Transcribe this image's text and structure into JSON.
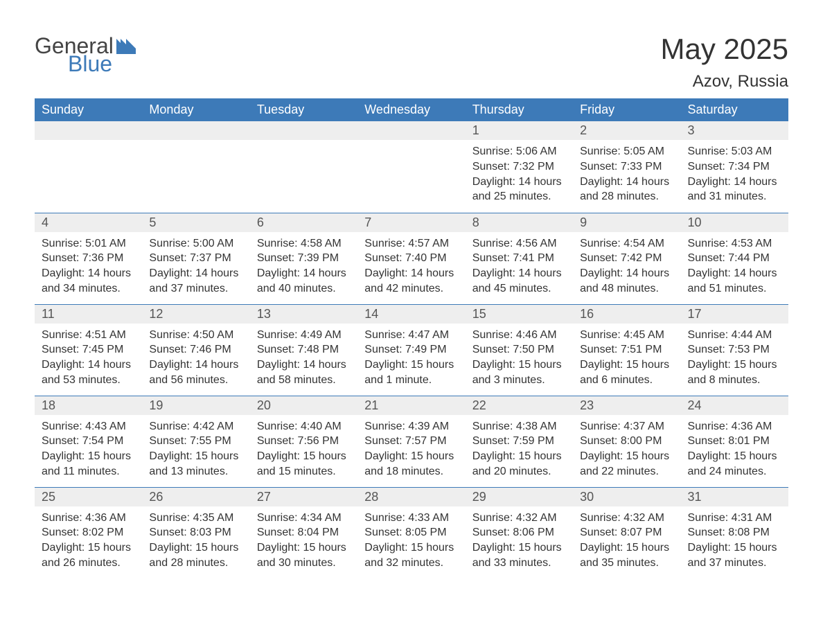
{
  "branding": {
    "word1": "General",
    "word2": "Blue",
    "word1_color": "#444444",
    "word2_color": "#3d7ab8",
    "flag_color": "#3d7ab8"
  },
  "title": {
    "month_year": "May 2025",
    "location": "Azov, Russia",
    "title_fontsize": 42,
    "location_fontsize": 24,
    "text_color": "#333333"
  },
  "calendar": {
    "type": "table",
    "header_bg": "#3d7ab8",
    "header_text_color": "#ffffff",
    "daynum_bg": "#eeeeee",
    "daynum_color": "#555555",
    "body_text_color": "#333333",
    "row_border_color": "#3d7ab8",
    "background_color": "#ffffff",
    "columns": [
      "Sunday",
      "Monday",
      "Tuesday",
      "Wednesday",
      "Thursday",
      "Friday",
      "Saturday"
    ],
    "weeks": [
      [
        {
          "day": null
        },
        {
          "day": null
        },
        {
          "day": null
        },
        {
          "day": null
        },
        {
          "day": "1",
          "sunrise": "Sunrise: 5:06 AM",
          "sunset": "Sunset: 7:32 PM",
          "daylight": "Daylight: 14 hours and 25 minutes."
        },
        {
          "day": "2",
          "sunrise": "Sunrise: 5:05 AM",
          "sunset": "Sunset: 7:33 PM",
          "daylight": "Daylight: 14 hours and 28 minutes."
        },
        {
          "day": "3",
          "sunrise": "Sunrise: 5:03 AM",
          "sunset": "Sunset: 7:34 PM",
          "daylight": "Daylight: 14 hours and 31 minutes."
        }
      ],
      [
        {
          "day": "4",
          "sunrise": "Sunrise: 5:01 AM",
          "sunset": "Sunset: 7:36 PM",
          "daylight": "Daylight: 14 hours and 34 minutes."
        },
        {
          "day": "5",
          "sunrise": "Sunrise: 5:00 AM",
          "sunset": "Sunset: 7:37 PM",
          "daylight": "Daylight: 14 hours and 37 minutes."
        },
        {
          "day": "6",
          "sunrise": "Sunrise: 4:58 AM",
          "sunset": "Sunset: 7:39 PM",
          "daylight": "Daylight: 14 hours and 40 minutes."
        },
        {
          "day": "7",
          "sunrise": "Sunrise: 4:57 AM",
          "sunset": "Sunset: 7:40 PM",
          "daylight": "Daylight: 14 hours and 42 minutes."
        },
        {
          "day": "8",
          "sunrise": "Sunrise: 4:56 AM",
          "sunset": "Sunset: 7:41 PM",
          "daylight": "Daylight: 14 hours and 45 minutes."
        },
        {
          "day": "9",
          "sunrise": "Sunrise: 4:54 AM",
          "sunset": "Sunset: 7:42 PM",
          "daylight": "Daylight: 14 hours and 48 minutes."
        },
        {
          "day": "10",
          "sunrise": "Sunrise: 4:53 AM",
          "sunset": "Sunset: 7:44 PM",
          "daylight": "Daylight: 14 hours and 51 minutes."
        }
      ],
      [
        {
          "day": "11",
          "sunrise": "Sunrise: 4:51 AM",
          "sunset": "Sunset: 7:45 PM",
          "daylight": "Daylight: 14 hours and 53 minutes."
        },
        {
          "day": "12",
          "sunrise": "Sunrise: 4:50 AM",
          "sunset": "Sunset: 7:46 PM",
          "daylight": "Daylight: 14 hours and 56 minutes."
        },
        {
          "day": "13",
          "sunrise": "Sunrise: 4:49 AM",
          "sunset": "Sunset: 7:48 PM",
          "daylight": "Daylight: 14 hours and 58 minutes."
        },
        {
          "day": "14",
          "sunrise": "Sunrise: 4:47 AM",
          "sunset": "Sunset: 7:49 PM",
          "daylight": "Daylight: 15 hours and 1 minute."
        },
        {
          "day": "15",
          "sunrise": "Sunrise: 4:46 AM",
          "sunset": "Sunset: 7:50 PM",
          "daylight": "Daylight: 15 hours and 3 minutes."
        },
        {
          "day": "16",
          "sunrise": "Sunrise: 4:45 AM",
          "sunset": "Sunset: 7:51 PM",
          "daylight": "Daylight: 15 hours and 6 minutes."
        },
        {
          "day": "17",
          "sunrise": "Sunrise: 4:44 AM",
          "sunset": "Sunset: 7:53 PM",
          "daylight": "Daylight: 15 hours and 8 minutes."
        }
      ],
      [
        {
          "day": "18",
          "sunrise": "Sunrise: 4:43 AM",
          "sunset": "Sunset: 7:54 PM",
          "daylight": "Daylight: 15 hours and 11 minutes."
        },
        {
          "day": "19",
          "sunrise": "Sunrise: 4:42 AM",
          "sunset": "Sunset: 7:55 PM",
          "daylight": "Daylight: 15 hours and 13 minutes."
        },
        {
          "day": "20",
          "sunrise": "Sunrise: 4:40 AM",
          "sunset": "Sunset: 7:56 PM",
          "daylight": "Daylight: 15 hours and 15 minutes."
        },
        {
          "day": "21",
          "sunrise": "Sunrise: 4:39 AM",
          "sunset": "Sunset: 7:57 PM",
          "daylight": "Daylight: 15 hours and 18 minutes."
        },
        {
          "day": "22",
          "sunrise": "Sunrise: 4:38 AM",
          "sunset": "Sunset: 7:59 PM",
          "daylight": "Daylight: 15 hours and 20 minutes."
        },
        {
          "day": "23",
          "sunrise": "Sunrise: 4:37 AM",
          "sunset": "Sunset: 8:00 PM",
          "daylight": "Daylight: 15 hours and 22 minutes."
        },
        {
          "day": "24",
          "sunrise": "Sunrise: 4:36 AM",
          "sunset": "Sunset: 8:01 PM",
          "daylight": "Daylight: 15 hours and 24 minutes."
        }
      ],
      [
        {
          "day": "25",
          "sunrise": "Sunrise: 4:36 AM",
          "sunset": "Sunset: 8:02 PM",
          "daylight": "Daylight: 15 hours and 26 minutes."
        },
        {
          "day": "26",
          "sunrise": "Sunrise: 4:35 AM",
          "sunset": "Sunset: 8:03 PM",
          "daylight": "Daylight: 15 hours and 28 minutes."
        },
        {
          "day": "27",
          "sunrise": "Sunrise: 4:34 AM",
          "sunset": "Sunset: 8:04 PM",
          "daylight": "Daylight: 15 hours and 30 minutes."
        },
        {
          "day": "28",
          "sunrise": "Sunrise: 4:33 AM",
          "sunset": "Sunset: 8:05 PM",
          "daylight": "Daylight: 15 hours and 32 minutes."
        },
        {
          "day": "29",
          "sunrise": "Sunrise: 4:32 AM",
          "sunset": "Sunset: 8:06 PM",
          "daylight": "Daylight: 15 hours and 33 minutes."
        },
        {
          "day": "30",
          "sunrise": "Sunrise: 4:32 AM",
          "sunset": "Sunset: 8:07 PM",
          "daylight": "Daylight: 15 hours and 35 minutes."
        },
        {
          "day": "31",
          "sunrise": "Sunrise: 4:31 AM",
          "sunset": "Sunset: 8:08 PM",
          "daylight": "Daylight: 15 hours and 37 minutes."
        }
      ]
    ]
  }
}
